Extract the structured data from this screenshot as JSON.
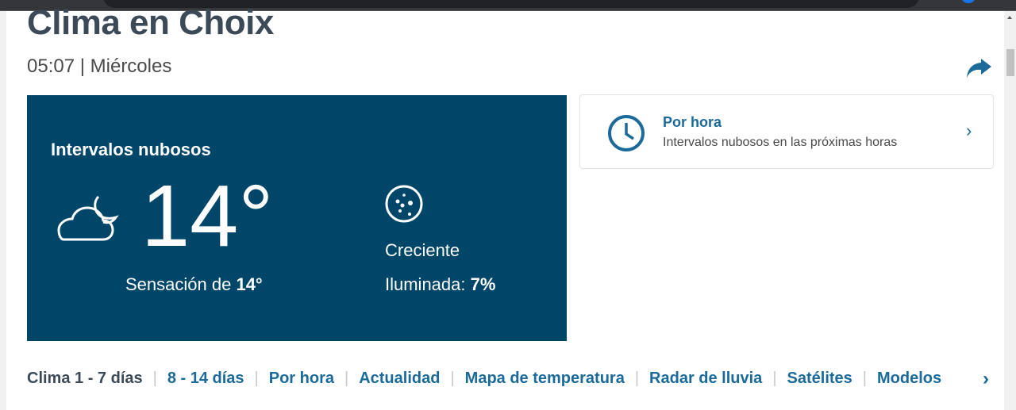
{
  "header": {
    "title": "Clima en Choix",
    "time": "05:07",
    "day": "Miércoles",
    "separator": "|"
  },
  "current": {
    "condition": "Intervalos nubosos",
    "icon": "cloud-moon-icon",
    "temperature": "14°",
    "feels_label": "Sensación de",
    "feels_value": "14°",
    "moon": {
      "icon": "moon-phase-icon",
      "phase": "Creciente",
      "illum_label": "Iluminada:",
      "illum_value": "7%"
    }
  },
  "hourly": {
    "title": "Por hora",
    "subtitle": "Intervalos nubosos en las próximas horas"
  },
  "nav": {
    "items": [
      {
        "label": "Clima 1 - 7 días",
        "active": true
      },
      {
        "label": "8 - 14 días"
      },
      {
        "label": "Por hora"
      },
      {
        "label": "Actualidad"
      },
      {
        "label": "Mapa de temperatura"
      },
      {
        "label": "Radar de lluvia"
      },
      {
        "label": "Satélites"
      },
      {
        "label": "Modelos"
      }
    ]
  },
  "colors": {
    "card": "#004669",
    "link": "#1b6a9a"
  }
}
